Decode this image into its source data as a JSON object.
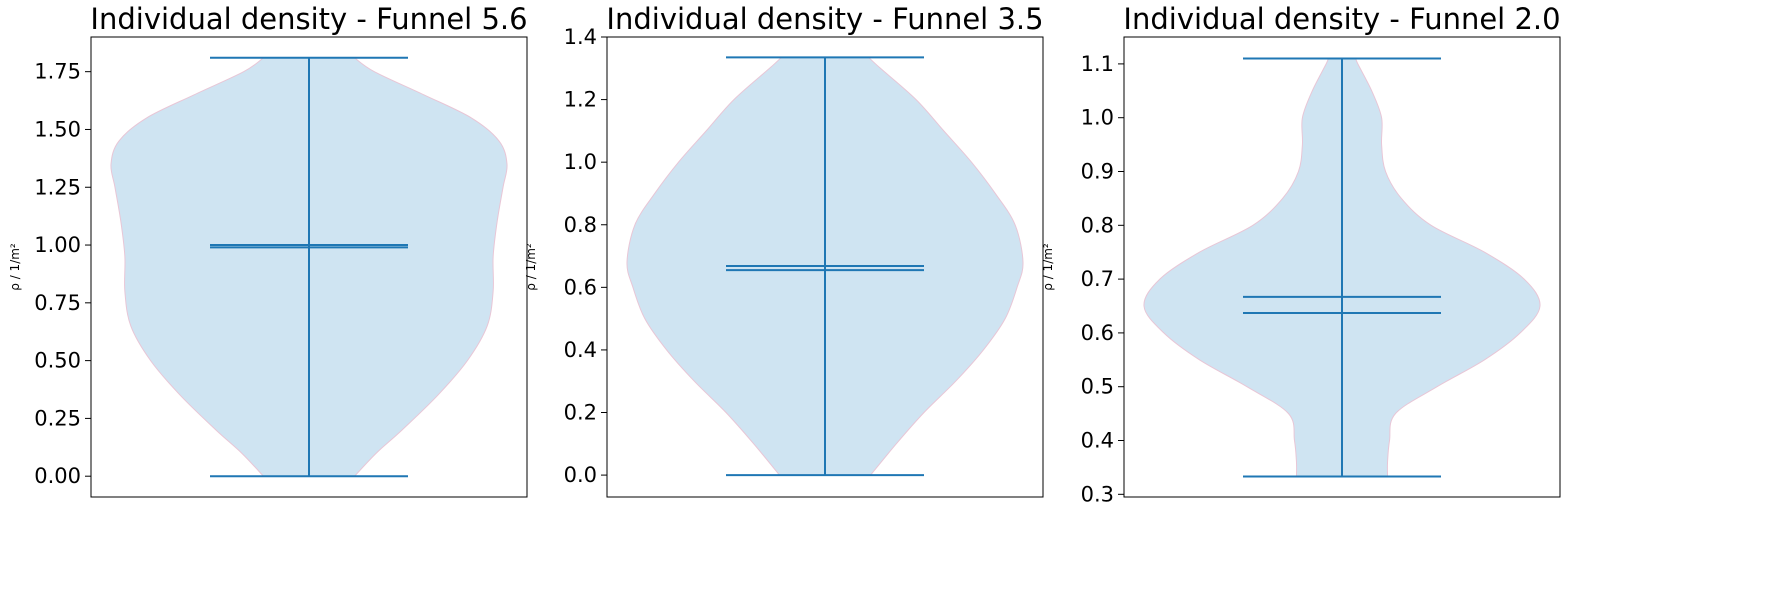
{
  "chart_data": [
    {
      "type": "violin",
      "title": "Individual density - Funnel 5.6",
      "ylabel": "ρ / 1/m²",
      "ylim": [
        -0.09,
        1.9
      ],
      "yticks": [
        0.0,
        0.25,
        0.5,
        0.75,
        1.0,
        1.25,
        1.5,
        1.75
      ],
      "ytick_labels": [
        "0.00",
        "0.25",
        "0.50",
        "0.75",
        "1.00",
        "1.25",
        "1.50",
        "1.75"
      ],
      "min": 0.0,
      "max": 1.81,
      "mean": 1.0,
      "median": 0.99,
      "density_profile": [
        [
          0.0,
          0.23
        ],
        [
          0.1,
          0.34
        ],
        [
          0.2,
          0.47
        ],
        [
          0.35,
          0.65
        ],
        [
          0.5,
          0.8
        ],
        [
          0.65,
          0.9
        ],
        [
          0.8,
          0.93
        ],
        [
          0.95,
          0.93
        ],
        [
          1.1,
          0.95
        ],
        [
          1.25,
          0.98
        ],
        [
          1.35,
          1.0
        ],
        [
          1.45,
          0.96
        ],
        [
          1.55,
          0.82
        ],
        [
          1.65,
          0.58
        ],
        [
          1.75,
          0.33
        ],
        [
          1.81,
          0.23
        ]
      ],
      "color": "#1f77b4",
      "fill": "#cfe4f2"
    },
    {
      "type": "violin",
      "title": "Individual density - Funnel 3.5",
      "ylabel": "ρ / 1/m²",
      "ylim": [
        -0.07,
        1.4
      ],
      "yticks": [
        0.0,
        0.2,
        0.4,
        0.6,
        0.8,
        1.0,
        1.2,
        1.4
      ],
      "ytick_labels": [
        "0.0",
        "0.2",
        "0.4",
        "0.6",
        "0.8",
        "1.0",
        "1.2",
        "1.4"
      ],
      "min": 0.0,
      "max": 1.335,
      "mean": 0.668,
      "median": 0.655,
      "density_profile": [
        [
          0.0,
          0.23
        ],
        [
          0.1,
          0.36
        ],
        [
          0.2,
          0.5
        ],
        [
          0.3,
          0.66
        ],
        [
          0.4,
          0.8
        ],
        [
          0.5,
          0.91
        ],
        [
          0.6,
          0.97
        ],
        [
          0.68,
          1.0
        ],
        [
          0.8,
          0.96
        ],
        [
          0.9,
          0.86
        ],
        [
          1.0,
          0.74
        ],
        [
          1.1,
          0.6
        ],
        [
          1.2,
          0.46
        ],
        [
          1.3,
          0.28
        ],
        [
          1.335,
          0.22
        ]
      ],
      "color": "#1f77b4",
      "fill": "#cfe4f2"
    },
    {
      "type": "violin",
      "title": "Individual density - Funnel 2.0",
      "ylabel": "ρ / 1/m²",
      "ylim": [
        0.295,
        1.15
      ],
      "yticks": [
        0.3,
        0.4,
        0.5,
        0.6,
        0.7,
        0.8,
        0.9,
        1.0,
        1.1
      ],
      "ytick_labels": [
        "0.3",
        "0.4",
        "0.5",
        "0.6",
        "0.7",
        "0.8",
        "0.9",
        "1.0",
        "1.1"
      ],
      "min": 0.333,
      "max": 1.11,
      "mean": 0.667,
      "median": 0.637,
      "density_profile": [
        [
          0.333,
          0.23
        ],
        [
          0.36,
          0.23
        ],
        [
          0.4,
          0.24
        ],
        [
          0.45,
          0.27
        ],
        [
          0.5,
          0.48
        ],
        [
          0.55,
          0.72
        ],
        [
          0.6,
          0.9
        ],
        [
          0.65,
          1.0
        ],
        [
          0.7,
          0.92
        ],
        [
          0.75,
          0.72
        ],
        [
          0.8,
          0.45
        ],
        [
          0.85,
          0.3
        ],
        [
          0.9,
          0.22
        ],
        [
          0.95,
          0.2
        ],
        [
          1.0,
          0.2
        ],
        [
          1.05,
          0.15
        ],
        [
          1.1,
          0.08
        ],
        [
          1.11,
          0.07
        ]
      ],
      "color": "#1f77b4",
      "fill": "#cfe4f2"
    }
  ]
}
